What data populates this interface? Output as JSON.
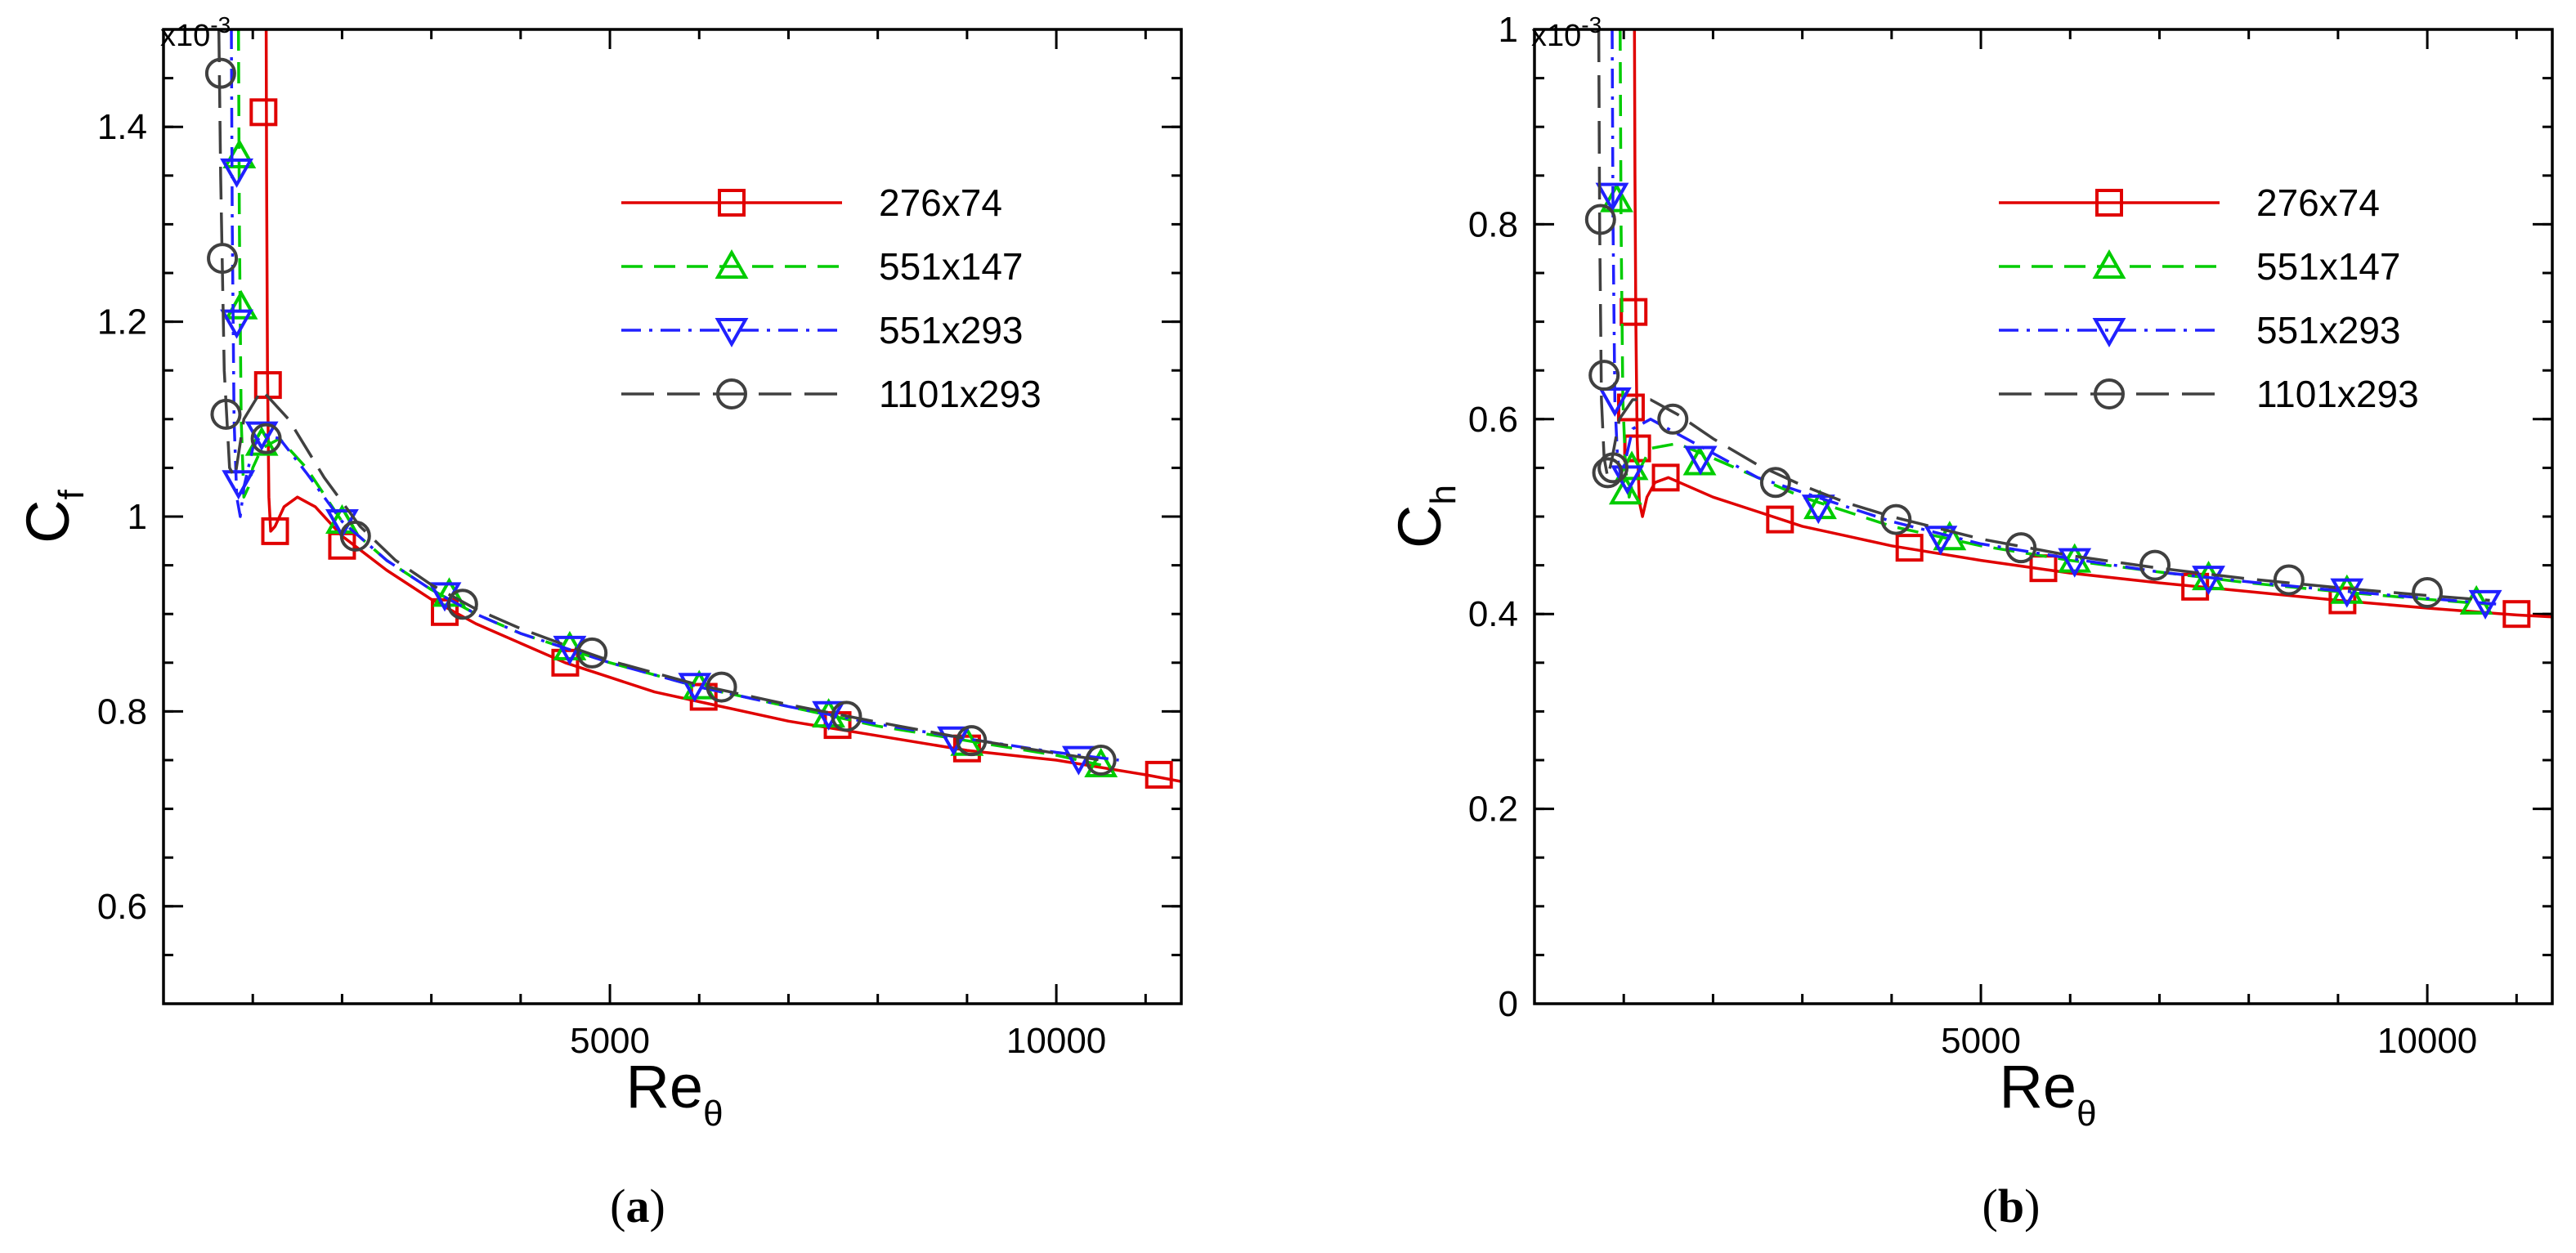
{
  "chart_data": [
    {
      "type": "line",
      "panel_label": "a",
      "title": "",
      "xlabel": "Re",
      "xlabel_sub": "θ",
      "ylabel": "C",
      "ylabel_sub": "f",
      "y_scale_label": "x10",
      "y_scale_exp": "-3",
      "xlim": [
        0,
        11400
      ],
      "ylim": [
        0.5,
        1.5
      ],
      "xticks": [
        5000,
        10000
      ],
      "xtick_labels": [
        "5000",
        "10000"
      ],
      "yticks": [
        0.6,
        0.8,
        1.0,
        1.2,
        1.4
      ],
      "ytick_labels": [
        "0.6",
        "0.8",
        "1",
        "1.2",
        "1.4"
      ],
      "legend_position": "top-right",
      "series": [
        {
          "name": "276x74",
          "color": "#e00000",
          "dash": "solid",
          "marker": "square",
          "x": [
            1150,
            1155,
            1165,
            1180,
            1200,
            1250,
            1350,
            1500,
            1700,
            2000,
            2500,
            3000,
            3500,
            4000,
            4500,
            5000,
            5500,
            6000,
            7000,
            8000,
            9000,
            10000,
            11000,
            11400
          ],
          "y": [
            1.5,
            1.35,
            1.15,
            1.02,
            0.985,
            0.99,
            1.01,
            1.02,
            1.01,
            0.98,
            0.945,
            0.915,
            0.89,
            0.87,
            0.85,
            0.835,
            0.82,
            0.81,
            0.79,
            0.775,
            0.76,
            0.75,
            0.735,
            0.728
          ],
          "marker_x": [
            1120,
            1170,
            1250,
            2000,
            3150,
            4500,
            6050,
            7550,
            9000,
            11150
          ],
          "marker_y": [
            1.415,
            1.135,
            0.985,
            0.97,
            0.902,
            0.85,
            0.815,
            0.786,
            0.762,
            0.735
          ]
        },
        {
          "name": "551x147",
          "color": "#00cc00",
          "dash": "dashed",
          "marker": "triangle-up",
          "x": [
            840,
            850,
            870,
            900,
            950,
            1000,
            1100,
            1300,
            1600,
            2000,
            2500,
            3000,
            3500,
            4000,
            4500,
            5000,
            6000,
            7000,
            8000,
            9000,
            10000,
            10500
          ],
          "y": [
            1.5,
            1.3,
            1.1,
            1.02,
            1.03,
            1.05,
            1.07,
            1.08,
            1.05,
            0.995,
            0.955,
            0.925,
            0.9,
            0.88,
            0.865,
            0.85,
            0.825,
            0.805,
            0.785,
            0.77,
            0.755,
            0.745
          ],
          "marker_x": [
            850,
            870,
            1100,
            2000,
            3200,
            4550,
            6000,
            7450,
            9000,
            10500
          ],
          "marker_y": [
            1.37,
            1.215,
            1.075,
            0.995,
            0.92,
            0.865,
            0.825,
            0.796,
            0.767,
            0.745
          ]
        },
        {
          "name": "551x293",
          "color": "#2020ff",
          "dash": "dashdot",
          "marker": "triangle-down",
          "x": [
            760,
            770,
            790,
            820,
            860,
            900,
            1000,
            1100,
            1300,
            1600,
            2000,
            2500,
            3000,
            3500,
            4000,
            4500,
            5000,
            6000,
            7000,
            8000,
            9000,
            10000,
            10700
          ],
          "y": [
            1.5,
            1.3,
            1.1,
            1.02,
            1.0,
            1.03,
            1.07,
            1.085,
            1.08,
            1.045,
            0.995,
            0.955,
            0.925,
            0.9,
            0.88,
            0.865,
            0.85,
            0.825,
            0.805,
            0.787,
            0.772,
            0.758,
            0.75
          ],
          "marker_x": [
            820,
            820,
            840,
            1100,
            2000,
            3150,
            4550,
            5950,
            7450,
            8850,
            10250
          ],
          "marker_y": [
            1.355,
            1.2,
            1.035,
            1.085,
            0.995,
            0.92,
            0.865,
            0.827,
            0.798,
            0.772,
            0.752
          ]
        },
        {
          "name": "1101x293",
          "color": "#404040",
          "dash": "longdash",
          "marker": "circle",
          "x": [
            620,
            640,
            680,
            740,
            800,
            900,
            1100,
            1400,
            1800,
            2200,
            2600,
            3000,
            3500,
            4000,
            4500,
            5000,
            6000,
            7000,
            8000,
            9000,
            10000,
            10500
          ],
          "y": [
            1.5,
            1.35,
            1.15,
            1.05,
            1.04,
            1.1,
            1.13,
            1.1,
            1.04,
            0.99,
            0.955,
            0.93,
            0.905,
            0.885,
            0.868,
            0.852,
            0.827,
            0.807,
            0.789,
            0.772,
            0.757,
            0.75
          ],
          "marker_x": [
            640,
            660,
            700,
            1150,
            2150,
            3350,
            4800,
            6250,
            7650,
            9050,
            10500
          ],
          "marker_y": [
            1.455,
            1.265,
            1.105,
            1.08,
            0.98,
            0.91,
            0.86,
            0.825,
            0.795,
            0.77,
            0.75
          ]
        }
      ]
    },
    {
      "type": "line",
      "panel_label": "b",
      "title": "",
      "xlabel": "Re",
      "xlabel_sub": "θ",
      "ylabel": "C",
      "ylabel_sub": "h",
      "y_scale_label": "x10",
      "y_scale_exp": "-3",
      "xlim": [
        0,
        11400
      ],
      "ylim": [
        0,
        1.0
      ],
      "xticks": [
        5000,
        10000
      ],
      "xtick_labels": [
        "5000",
        "10000"
      ],
      "yticks": [
        0,
        0.2,
        0.4,
        0.6,
        0.8,
        1.0
      ],
      "ytick_labels": [
        "0",
        "0.2",
        "0.4",
        "0.6",
        "0.8",
        "1"
      ],
      "legend_position": "top-right",
      "series": [
        {
          "name": "276x74",
          "color": "#e00000",
          "dash": "solid",
          "marker": "square",
          "x": [
            1120,
            1125,
            1135,
            1150,
            1175,
            1210,
            1260,
            1350,
            1500,
            2000,
            2500,
            3000,
            3500,
            4000,
            5000,
            6000,
            7000,
            8000,
            9000,
            10000,
            11000,
            11400
          ],
          "y": [
            1.0,
            0.85,
            0.7,
            0.58,
            0.515,
            0.5,
            0.52,
            0.535,
            0.54,
            0.52,
            0.505,
            0.49,
            0.48,
            0.47,
            0.455,
            0.442,
            0.432,
            0.423,
            0.414,
            0.406,
            0.399,
            0.397
          ],
          "marker_x": [
            1080,
            1110,
            1150,
            1470,
            2750,
            4200,
            5700,
            7400,
            9050,
            11000
          ],
          "marker_y": [
            0.612,
            0.71,
            0.57,
            0.54,
            0.497,
            0.468,
            0.447,
            0.428,
            0.414,
            0.4
          ]
        },
        {
          "name": "551x147",
          "color": "#00cc00",
          "dash": "dashed",
          "marker": "triangle-up",
          "x": [
            960,
            970,
            990,
            1020,
            1060,
            1100,
            1300,
            1600,
            2000,
            2500,
            3000,
            3500,
            4000,
            5000,
            6000,
            7000,
            8000,
            9000,
            10000,
            10700
          ],
          "y": [
            1.0,
            0.8,
            0.62,
            0.55,
            0.52,
            0.535,
            0.57,
            0.575,
            0.56,
            0.54,
            0.52,
            0.505,
            0.49,
            0.47,
            0.455,
            0.443,
            0.432,
            0.423,
            0.415,
            0.41
          ],
          "marker_x": [
            920,
            1020,
            1090,
            1850,
            3200,
            4650,
            6050,
            7550,
            9100,
            10550
          ],
          "marker_y": [
            0.825,
            0.525,
            0.55,
            0.555,
            0.51,
            0.478,
            0.455,
            0.437,
            0.423,
            0.412
          ]
        },
        {
          "name": "551x293",
          "color": "#2020ff",
          "dash": "dashdot",
          "marker": "triangle-down",
          "x": [
            870,
            880,
            900,
            930,
            970,
            1000,
            1100,
            1300,
            1600,
            2000,
            2500,
            3000,
            3500,
            4000,
            5000,
            6000,
            7000,
            8000,
            9000,
            10000,
            10800
          ],
          "y": [
            1.0,
            0.8,
            0.62,
            0.56,
            0.54,
            0.55,
            0.59,
            0.6,
            0.585,
            0.565,
            0.54,
            0.525,
            0.51,
            0.495,
            0.472,
            0.457,
            0.443,
            0.433,
            0.424,
            0.416,
            0.41
          ],
          "marker_x": [
            870,
            900,
            1040,
            1860,
            3180,
            4550,
            6050,
            7550,
            9100,
            10650
          ],
          "marker_y": [
            0.83,
            0.62,
            0.54,
            0.56,
            0.51,
            0.478,
            0.455,
            0.437,
            0.424,
            0.412
          ]
        },
        {
          "name": "1101x293",
          "color": "#404040",
          "dash": "longdash",
          "marker": "circle",
          "x": [
            720,
            730,
            750,
            780,
            820,
            870,
            950,
            1100,
            1300,
            1600,
            2000,
            2500,
            3000,
            3500,
            4000,
            5000,
            6000,
            7000,
            8000,
            9000,
            10000,
            10700
          ],
          "y": [
            1.0,
            0.8,
            0.62,
            0.56,
            0.54,
            0.56,
            0.6,
            0.62,
            0.62,
            0.605,
            0.58,
            0.553,
            0.532,
            0.514,
            0.5,
            0.477,
            0.46,
            0.447,
            0.436,
            0.427,
            0.419,
            0.414
          ],
          "marker_x": [
            740,
            780,
            820,
            880,
            1550,
            2700,
            4050,
            5450,
            6950,
            8450,
            10000
          ],
          "marker_y": [
            0.805,
            0.645,
            0.545,
            0.55,
            0.6,
            0.535,
            0.497,
            0.468,
            0.45,
            0.435,
            0.422
          ]
        }
      ]
    }
  ]
}
